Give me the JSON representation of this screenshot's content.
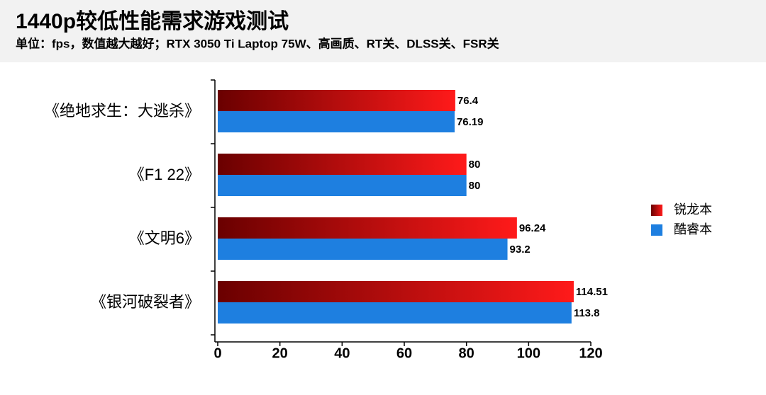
{
  "chart_data": {
    "type": "bar",
    "orientation": "horizontal",
    "title": "1440p较低性能需求游戏测试",
    "subtitle": "单位：fps，数值越大越好；RTX 3050 Ti Laptop 75W、高画质、RT关、DLSS关、FSR关",
    "categories": [
      "《绝地求生：大逃杀》",
      "《F1 22》",
      "《文明6》",
      "《银河破裂者》"
    ],
    "series": [
      {
        "name": "锐龙本",
        "color": "#ff1a1a",
        "values": [
          76.4,
          80,
          96.24,
          114.51
        ]
      },
      {
        "name": "酷睿本",
        "color": "#1e7fe0",
        "values": [
          76.19,
          80,
          93.2,
          113.8
        ]
      }
    ],
    "xlim": [
      0,
      120
    ],
    "xticks": [
      0,
      20,
      40,
      60,
      80,
      100,
      120
    ],
    "legend": "right"
  }
}
